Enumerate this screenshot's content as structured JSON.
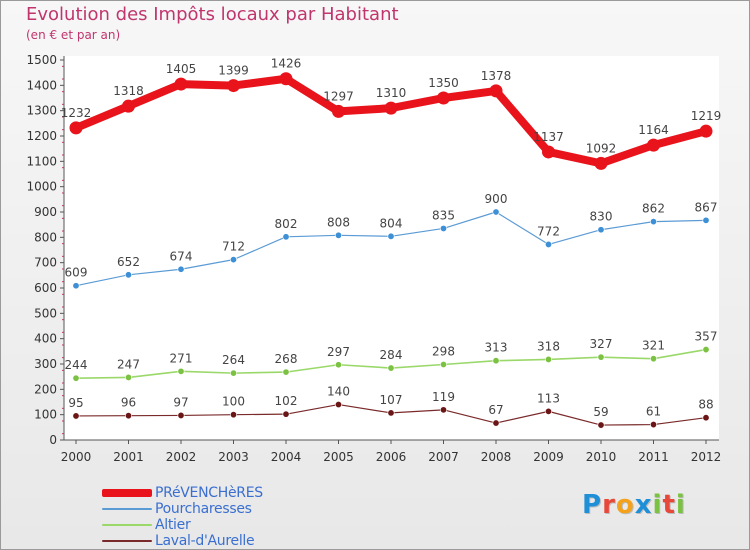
{
  "title": "Evolution des Impôts locaux par Habitant",
  "subtitle": "(en € et par an)",
  "brand": {
    "name": "Proxiti",
    "letters": [
      "P",
      "r",
      "o",
      "x",
      "i",
      "t",
      "i"
    ],
    "letter_colors": [
      "#1f8fd8",
      "#e8483a",
      "#f4a21c",
      "#1f8fd8",
      "#7cc242",
      "#e8483a",
      "#7cc242"
    ]
  },
  "chart_data": {
    "type": "line",
    "x": [
      "2000",
      "2001",
      "2002",
      "2003",
      "2004",
      "2005",
      "2006",
      "2007",
      "2008",
      "2009",
      "2010",
      "2011",
      "2012"
    ],
    "ylim": [
      0,
      1500
    ],
    "yticks": [
      0,
      100,
      200,
      300,
      400,
      500,
      600,
      700,
      800,
      900,
      1000,
      1100,
      1200,
      1300,
      1400,
      1500
    ],
    "grid": false,
    "legend": "bottom-left",
    "series": [
      {
        "name": "PRéVENCHèRES",
        "color": "#e8131b",
        "values": [
          1232,
          1318,
          1405,
          1399,
          1426,
          1297,
          1310,
          1350,
          1378,
          1137,
          1092,
          1164,
          1219
        ]
      },
      {
        "name": "Pourcharesses",
        "color": "#5b9bd5",
        "values": [
          609,
          652,
          674,
          712,
          802,
          808,
          804,
          835,
          900,
          772,
          830,
          862,
          867
        ]
      },
      {
        "name": "Altier",
        "color": "#9ad86a",
        "values": [
          244,
          247,
          271,
          264,
          268,
          297,
          284,
          298,
          313,
          318,
          327,
          321,
          357
        ]
      },
      {
        "name": "Laval-d'Aurelle",
        "color": "#7a2a2a",
        "values": [
          95,
          96,
          97,
          100,
          102,
          140,
          107,
          119,
          67,
          113,
          59,
          61,
          88
        ]
      }
    ]
  }
}
